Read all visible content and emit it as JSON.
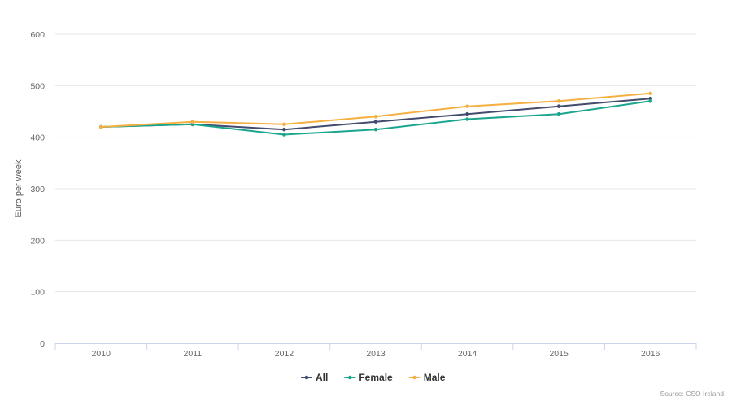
{
  "chart_data": {
    "type": "line",
    "title": "",
    "xlabel": "",
    "ylabel": "Euro per week",
    "x": [
      "2010",
      "2011",
      "2012",
      "2013",
      "2014",
      "2015",
      "2016"
    ],
    "yticks": [
      "0",
      "100",
      "200",
      "300",
      "400",
      "500",
      "600"
    ],
    "ylim": [
      0,
      600
    ],
    "grid": true,
    "legend_position": "bottom-center",
    "series": [
      {
        "name": "All",
        "color": "#434b6e",
        "values": [
          420,
          425,
          415,
          430,
          445,
          460,
          475
        ]
      },
      {
        "name": "Female",
        "color": "#1aa68e",
        "values": [
          420,
          425,
          405,
          415,
          435,
          445,
          470
        ]
      },
      {
        "name": "Male",
        "color": "#f5b041",
        "values": [
          420,
          430,
          425,
          440,
          460,
          470,
          485
        ]
      }
    ],
    "source": "Source: CSO Ireland"
  }
}
